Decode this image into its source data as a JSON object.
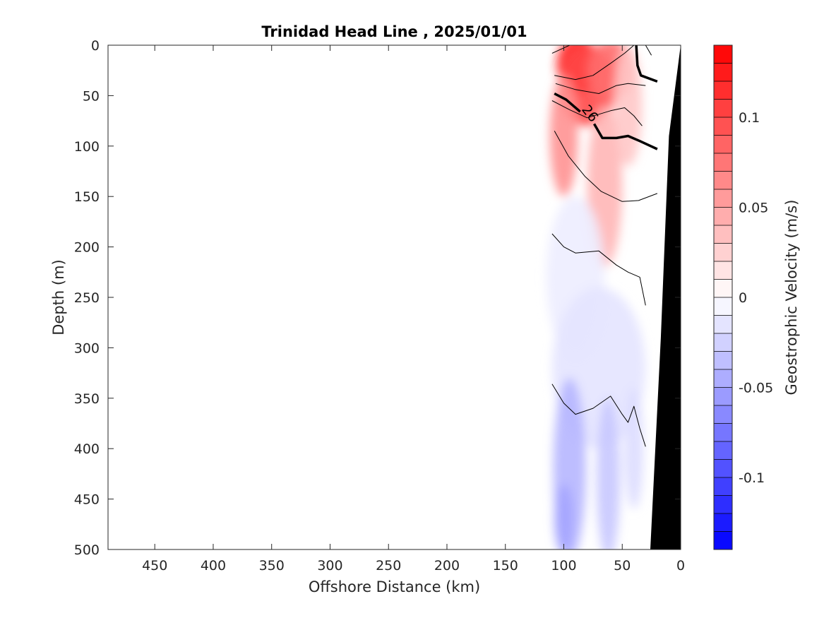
{
  "chart_data": {
    "type": "heatmap",
    "title": "Trinidad Head Line , 2025/01/01",
    "xlabel": "Offshore Distance (km)",
    "ylabel": "Depth (m)",
    "xlim": [
      490,
      0
    ],
    "ylim": [
      0,
      500
    ],
    "x_reversed": true,
    "y_reversed": true,
    "xticks": [
      450,
      400,
      350,
      300,
      250,
      200,
      150,
      100,
      50,
      0
    ],
    "yticks": [
      0,
      50,
      100,
      150,
      200,
      250,
      300,
      350,
      400,
      450,
      500
    ],
    "colorbar": {
      "label": "Geostrophic Velocity (m/s)",
      "range": [
        -0.14,
        0.14
      ],
      "levels": 28,
      "ticks": [
        0.1,
        0.05,
        0,
        -0.05,
        -0.1
      ],
      "tick_labels": [
        "0.1",
        "0.05",
        "0",
        "-0.05",
        "-0.1"
      ],
      "positive_color": "#ff0000",
      "negative_color": "#0000ff",
      "zero_color": "#ffffff"
    },
    "velocity_patches": [
      {
        "x": 88,
        "y": 20,
        "v": 0.13,
        "rx": 18,
        "ry": 28
      },
      {
        "x": 80,
        "y": 40,
        "v": 0.1,
        "rx": 25,
        "ry": 40
      },
      {
        "x": 60,
        "y": 25,
        "v": 0.08,
        "rx": 20,
        "ry": 30
      },
      {
        "x": 100,
        "y": 90,
        "v": 0.06,
        "rx": 12,
        "ry": 60
      },
      {
        "x": 65,
        "y": 140,
        "v": 0.04,
        "rx": 15,
        "ry": 80
      },
      {
        "x": 45,
        "y": 60,
        "v": 0.03,
        "rx": 12,
        "ry": 60
      },
      {
        "x": 90,
        "y": 230,
        "v": -0.01,
        "rx": 25,
        "ry": 80
      },
      {
        "x": 70,
        "y": 320,
        "v": -0.015,
        "rx": 40,
        "ry": 80
      },
      {
        "x": 95,
        "y": 420,
        "v": -0.04,
        "rx": 14,
        "ry": 90
      },
      {
        "x": 62,
        "y": 430,
        "v": -0.03,
        "rx": 10,
        "ry": 80
      },
      {
        "x": 40,
        "y": 400,
        "v": -0.02,
        "rx": 8,
        "ry": 60
      },
      {
        "x": 100,
        "y": 470,
        "v": -0.05,
        "rx": 8,
        "ry": 35
      }
    ],
    "data_extent": {
      "x_min": 25,
      "x_max": 110,
      "y_min": 0,
      "y_max": 500
    },
    "bathymetry_polygon": [
      [
        0,
        0
      ],
      [
        10,
        90
      ],
      [
        17,
        290
      ],
      [
        26,
        500
      ],
      [
        0,
        500
      ]
    ],
    "density_contours": [
      {
        "bold": false,
        "points": [
          [
            110,
            8
          ],
          [
            95,
            0
          ]
        ]
      },
      {
        "bold": false,
        "points": [
          [
            108,
            30
          ],
          [
            90,
            34
          ],
          [
            75,
            30
          ],
          [
            60,
            18
          ],
          [
            48,
            8
          ],
          [
            40,
            0
          ]
        ]
      },
      {
        "bold": false,
        "points": [
          [
            107,
            38
          ],
          [
            90,
            44
          ],
          [
            70,
            48
          ],
          [
            55,
            40
          ],
          [
            45,
            38
          ],
          [
            30,
            40
          ]
        ]
      },
      {
        "bold": true,
        "points": [
          [
            108,
            48
          ],
          [
            98,
            54
          ],
          [
            86,
            66
          ]
        ]
      },
      {
        "bold": true,
        "points": [
          [
            74,
            78
          ],
          [
            67,
            92
          ],
          [
            55,
            92
          ],
          [
            45,
            90
          ],
          [
            35,
            95
          ],
          [
            20,
            103
          ]
        ]
      },
      {
        "bold": true,
        "points": [
          [
            38,
            0
          ],
          [
            37,
            20
          ],
          [
            34,
            30
          ],
          [
            20,
            36
          ]
        ]
      },
      {
        "bold": false,
        "points": [
          [
            110,
            55
          ],
          [
            95,
            64
          ],
          [
            80,
            72
          ],
          [
            60,
            65
          ],
          [
            48,
            62
          ],
          [
            40,
            70
          ],
          [
            33,
            80
          ]
        ]
      },
      {
        "bold": false,
        "points": [
          [
            108,
            85
          ],
          [
            96,
            110
          ],
          [
            82,
            130
          ],
          [
            68,
            145
          ],
          [
            50,
            155
          ],
          [
            36,
            154
          ],
          [
            20,
            147
          ]
        ]
      },
      {
        "bold": false,
        "points": [
          [
            110,
            187
          ],
          [
            100,
            200
          ],
          [
            90,
            206
          ],
          [
            70,
            204
          ],
          [
            55,
            218
          ],
          [
            45,
            225
          ],
          [
            35,
            230
          ],
          [
            30,
            258
          ]
        ]
      },
      {
        "bold": false,
        "points": [
          [
            110,
            336
          ],
          [
            100,
            355
          ],
          [
            90,
            366
          ],
          [
            75,
            360
          ],
          [
            60,
            348
          ],
          [
            50,
            366
          ],
          [
            45,
            374
          ],
          [
            40,
            358
          ],
          [
            35,
            380
          ],
          [
            30,
            398
          ]
        ]
      },
      {
        "bold": false,
        "points": [
          [
            30,
            0
          ],
          [
            25,
            10
          ]
        ]
      }
    ],
    "contour_labels": [
      {
        "text": "26",
        "x": 78,
        "y": 68
      }
    ]
  }
}
